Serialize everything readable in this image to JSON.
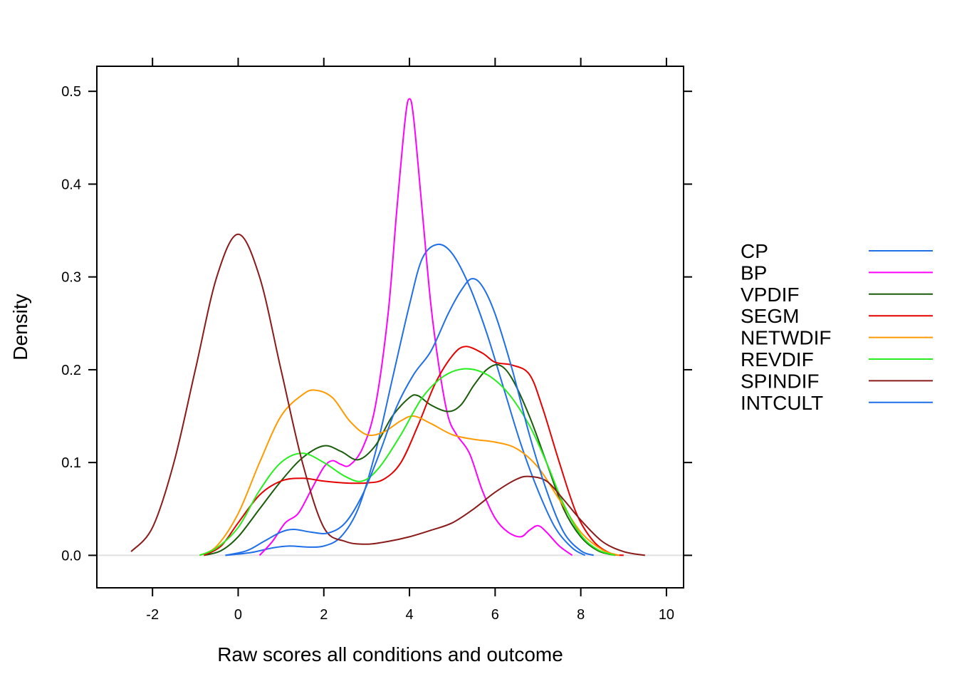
{
  "chart_data": {
    "type": "line",
    "title": "",
    "xlabel": "Raw scores all conditions and outcome",
    "ylabel": "Density",
    "xlim": [
      -3.3,
      10.4
    ],
    "ylim": [
      -0.035,
      0.527
    ],
    "x_ticks": [
      -2,
      0,
      2,
      4,
      6,
      8,
      10
    ],
    "x_tick_labels": [
      "-2",
      "0",
      "2",
      "4",
      "6",
      "8",
      "10"
    ],
    "y_ticks": [
      0.0,
      0.1,
      0.2,
      0.3,
      0.4,
      0.5
    ],
    "y_tick_labels": [
      "0.0",
      "0.1",
      "0.2",
      "0.3",
      "0.4",
      "0.5"
    ],
    "grid": false,
    "baseline": 0,
    "legend_position": "right",
    "series": [
      {
        "name": "CP",
        "color": "#1f6fe8",
        "points": [
          [
            -0.3,
            0.0
          ],
          [
            0.3,
            0.003
          ],
          [
            0.8,
            0.008
          ],
          [
            1.2,
            0.01
          ],
          [
            1.6,
            0.009
          ],
          [
            2.0,
            0.01
          ],
          [
            2.4,
            0.02
          ],
          [
            2.8,
            0.05
          ],
          [
            3.2,
            0.11
          ],
          [
            3.6,
            0.19
          ],
          [
            4.0,
            0.27
          ],
          [
            4.3,
            0.32
          ],
          [
            4.65,
            0.335
          ],
          [
            5.0,
            0.325
          ],
          [
            5.4,
            0.29
          ],
          [
            5.8,
            0.24
          ],
          [
            6.2,
            0.18
          ],
          [
            6.6,
            0.12
          ],
          [
            7.0,
            0.07
          ],
          [
            7.4,
            0.03
          ],
          [
            7.8,
            0.008
          ],
          [
            8.1,
            0.0
          ]
        ]
      },
      {
        "name": "BP",
        "color": "#ff00ff",
        "points": [
          [
            0.5,
            0.0
          ],
          [
            0.8,
            0.015
          ],
          [
            1.1,
            0.035
          ],
          [
            1.4,
            0.045
          ],
          [
            1.7,
            0.07
          ],
          [
            2.0,
            0.095
          ],
          [
            2.2,
            0.102
          ],
          [
            2.4,
            0.098
          ],
          [
            2.6,
            0.097
          ],
          [
            2.9,
            0.115
          ],
          [
            3.2,
            0.16
          ],
          [
            3.5,
            0.26
          ],
          [
            3.7,
            0.37
          ],
          [
            3.9,
            0.47
          ],
          [
            4.0,
            0.492
          ],
          [
            4.1,
            0.47
          ],
          [
            4.3,
            0.37
          ],
          [
            4.5,
            0.27
          ],
          [
            4.7,
            0.2
          ],
          [
            4.9,
            0.15
          ],
          [
            5.1,
            0.13
          ],
          [
            5.4,
            0.11
          ],
          [
            5.7,
            0.07
          ],
          [
            6.0,
            0.04
          ],
          [
            6.3,
            0.025
          ],
          [
            6.6,
            0.02
          ],
          [
            6.8,
            0.027
          ],
          [
            7.0,
            0.032
          ],
          [
            7.2,
            0.025
          ],
          [
            7.5,
            0.01
          ],
          [
            7.8,
            0.0
          ]
        ]
      },
      {
        "name": "VPDIF",
        "color": "#1a5c0a",
        "points": [
          [
            -0.8,
            0.0
          ],
          [
            -0.4,
            0.005
          ],
          [
            0.0,
            0.02
          ],
          [
            0.5,
            0.05
          ],
          [
            1.0,
            0.08
          ],
          [
            1.5,
            0.105
          ],
          [
            2.0,
            0.118
          ],
          [
            2.4,
            0.112
          ],
          [
            2.8,
            0.103
          ],
          [
            3.2,
            0.118
          ],
          [
            3.6,
            0.15
          ],
          [
            4.0,
            0.17
          ],
          [
            4.2,
            0.172
          ],
          [
            4.5,
            0.162
          ],
          [
            4.9,
            0.155
          ],
          [
            5.2,
            0.162
          ],
          [
            5.5,
            0.183
          ],
          [
            5.8,
            0.2
          ],
          [
            6.1,
            0.205
          ],
          [
            6.4,
            0.19
          ],
          [
            6.8,
            0.15
          ],
          [
            7.2,
            0.1
          ],
          [
            7.6,
            0.05
          ],
          [
            8.0,
            0.02
          ],
          [
            8.4,
            0.005
          ],
          [
            8.8,
            0.0
          ]
        ]
      },
      {
        "name": "SEGM",
        "color": "#e60000",
        "points": [
          [
            -0.8,
            0.0
          ],
          [
            -0.4,
            0.01
          ],
          [
            0.0,
            0.035
          ],
          [
            0.5,
            0.065
          ],
          [
            1.0,
            0.08
          ],
          [
            1.5,
            0.083
          ],
          [
            2.0,
            0.08
          ],
          [
            2.5,
            0.078
          ],
          [
            3.0,
            0.078
          ],
          [
            3.4,
            0.082
          ],
          [
            3.8,
            0.1
          ],
          [
            4.2,
            0.14
          ],
          [
            4.6,
            0.185
          ],
          [
            5.0,
            0.215
          ],
          [
            5.3,
            0.225
          ],
          [
            5.7,
            0.218
          ],
          [
            6.0,
            0.208
          ],
          [
            6.4,
            0.205
          ],
          [
            6.8,
            0.195
          ],
          [
            7.1,
            0.16
          ],
          [
            7.5,
            0.1
          ],
          [
            7.9,
            0.045
          ],
          [
            8.3,
            0.015
          ],
          [
            8.7,
            0.002
          ],
          [
            9.0,
            0.0
          ]
        ]
      },
      {
        "name": "NETWDIF",
        "color": "#ff9a00",
        "points": [
          [
            -0.9,
            0.0
          ],
          [
            -0.5,
            0.01
          ],
          [
            0.0,
            0.045
          ],
          [
            0.5,
            0.1
          ],
          [
            1.0,
            0.15
          ],
          [
            1.5,
            0.173
          ],
          [
            1.8,
            0.178
          ],
          [
            2.2,
            0.17
          ],
          [
            2.6,
            0.145
          ],
          [
            3.0,
            0.13
          ],
          [
            3.4,
            0.133
          ],
          [
            3.8,
            0.145
          ],
          [
            4.1,
            0.15
          ],
          [
            4.5,
            0.142
          ],
          [
            5.0,
            0.13
          ],
          [
            5.5,
            0.125
          ],
          [
            6.0,
            0.122
          ],
          [
            6.5,
            0.115
          ],
          [
            7.0,
            0.095
          ],
          [
            7.5,
            0.06
          ],
          [
            8.0,
            0.025
          ],
          [
            8.5,
            0.006
          ],
          [
            8.9,
            0.0
          ]
        ]
      },
      {
        "name": "REVDIF",
        "color": "#27ef1e",
        "points": [
          [
            -0.9,
            0.0
          ],
          [
            -0.5,
            0.008
          ],
          [
            0.0,
            0.03
          ],
          [
            0.5,
            0.07
          ],
          [
            1.0,
            0.1
          ],
          [
            1.5,
            0.11
          ],
          [
            2.0,
            0.1
          ],
          [
            2.5,
            0.085
          ],
          [
            2.9,
            0.08
          ],
          [
            3.3,
            0.095
          ],
          [
            3.8,
            0.13
          ],
          [
            4.3,
            0.17
          ],
          [
            4.8,
            0.193
          ],
          [
            5.3,
            0.201
          ],
          [
            5.8,
            0.195
          ],
          [
            6.3,
            0.175
          ],
          [
            6.8,
            0.14
          ],
          [
            7.2,
            0.1
          ],
          [
            7.6,
            0.055
          ],
          [
            8.0,
            0.022
          ],
          [
            8.4,
            0.006
          ],
          [
            8.8,
            0.0
          ]
        ]
      },
      {
        "name": "SPINDIF",
        "color": "#8b1a1a",
        "points": [
          [
            -2.5,
            0.004
          ],
          [
            -2.0,
            0.03
          ],
          [
            -1.5,
            0.1
          ],
          [
            -1.0,
            0.2
          ],
          [
            -0.5,
            0.3
          ],
          [
            0.0,
            0.346
          ],
          [
            0.5,
            0.3
          ],
          [
            1.0,
            0.2
          ],
          [
            1.5,
            0.1
          ],
          [
            2.0,
            0.03
          ],
          [
            2.5,
            0.015
          ],
          [
            3.0,
            0.012
          ],
          [
            3.5,
            0.015
          ],
          [
            4.0,
            0.02
          ],
          [
            4.5,
            0.027
          ],
          [
            5.0,
            0.035
          ],
          [
            5.5,
            0.05
          ],
          [
            6.0,
            0.068
          ],
          [
            6.5,
            0.082
          ],
          [
            6.8,
            0.085
          ],
          [
            7.2,
            0.08
          ],
          [
            7.6,
            0.06
          ],
          [
            8.0,
            0.038
          ],
          [
            8.5,
            0.015
          ],
          [
            9.0,
            0.004
          ],
          [
            9.5,
            0.0
          ]
        ]
      },
      {
        "name": "INTCULT",
        "color": "#1f6fe8",
        "points": [
          [
            -0.3,
            0.0
          ],
          [
            0.2,
            0.005
          ],
          [
            0.6,
            0.015
          ],
          [
            1.0,
            0.025
          ],
          [
            1.3,
            0.028
          ],
          [
            1.7,
            0.025
          ],
          [
            2.1,
            0.024
          ],
          [
            2.5,
            0.035
          ],
          [
            2.9,
            0.065
          ],
          [
            3.3,
            0.11
          ],
          [
            3.7,
            0.16
          ],
          [
            4.1,
            0.195
          ],
          [
            4.5,
            0.22
          ],
          [
            4.9,
            0.26
          ],
          [
            5.2,
            0.285
          ],
          [
            5.45,
            0.298
          ],
          [
            5.7,
            0.29
          ],
          [
            6.0,
            0.26
          ],
          [
            6.4,
            0.2
          ],
          [
            6.8,
            0.13
          ],
          [
            7.2,
            0.07
          ],
          [
            7.6,
            0.025
          ],
          [
            8.0,
            0.005
          ],
          [
            8.3,
            0.0
          ]
        ]
      }
    ]
  }
}
